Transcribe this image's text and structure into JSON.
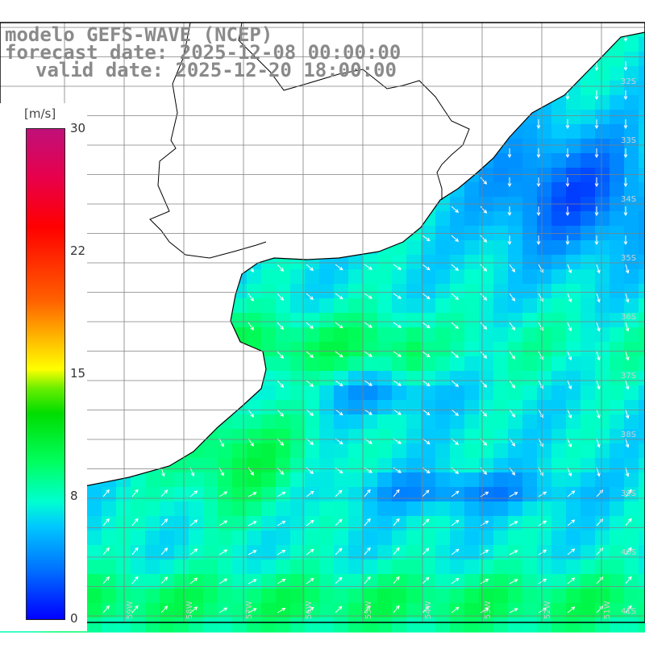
{
  "header": {
    "line1": "modelo GEFS-WAVE (NCEP)",
    "line2": "forecast date: 2025-12-08 00:00:00",
    "line3": "valid date: 2025-12-20 18:00:00"
  },
  "colorbar": {
    "unit": "[m/s]",
    "ticks": [
      "30",
      "22",
      "15",
      "8",
      "0"
    ],
    "scale_min": 0,
    "scale_max": 30,
    "colors": [
      "#0000ff",
      "#00c8ff",
      "#00ffd0",
      "#00dd00",
      "#ffff00",
      "#ff6000",
      "#ff0000",
      "#c0107a"
    ]
  },
  "map": {
    "lat_labels": [
      "32S",
      "33S",
      "34S",
      "35S",
      "36S",
      "37S",
      "38S",
      "39S",
      "40S",
      "41S"
    ],
    "lon_labels": [
      "61W",
      "60W",
      "59W",
      "58W",
      "57W",
      "56W",
      "55W",
      "54W",
      "53W",
      "52W",
      "51W"
    ],
    "field": "wind speed with wind-direction arrows",
    "land_color": "#ffffff",
    "grid_color": "#808080",
    "coast_color": "#000000"
  }
}
